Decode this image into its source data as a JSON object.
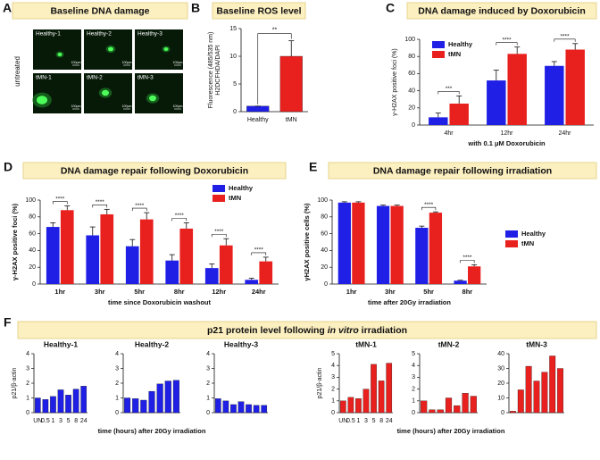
{
  "panel_a": {
    "letter": "A",
    "title": "Baseline DNA damage",
    "row_label": "untreated",
    "images": [
      "Healthy-1",
      "Healthy-2",
      "Healthy-3",
      "tMN-1",
      "tMN-2",
      "tMN-3"
    ],
    "scale_label": "100µm"
  },
  "panel_f": {
    "letter": "F",
    "title_parts": [
      "p21 protein level following ",
      "in vitro",
      " irradiation"
    ]
  },
  "chart_data": [
    {
      "type": "bar",
      "panel": "B",
      "title": "Baseline ROS level",
      "ylabel": [
        "Fluorescence (485/535 nm)",
        "H2DCFHDA/DAPI"
      ],
      "categories": [
        "Healthy",
        "tMN"
      ],
      "values": [
        1,
        10
      ],
      "errors": [
        0,
        2.8
      ],
      "colors": [
        "#1f1fe6",
        "#e8201e"
      ],
      "ylim": [
        0,
        15
      ],
      "yticks": [
        0,
        5,
        10,
        15
      ],
      "comparisons": [
        {
          "from": 0,
          "to": 1,
          "label": "**"
        }
      ]
    },
    {
      "type": "bar",
      "panel": "C",
      "title": "DNA damage induced by Doxorubicin",
      "ylabel": "γ-H2AX positive foci (%)",
      "xlabel": "with 0.1 μM Doxorubicin",
      "categories": [
        "4hr",
        "12hr",
        "24hr"
      ],
      "series": [
        {
          "name": "Healthy",
          "color": "#1f1fe6",
          "values": [
            9,
            52,
            69
          ],
          "errors": [
            5,
            12,
            5
          ]
        },
        {
          "name": "tMN",
          "color": "#e8201e",
          "values": [
            25,
            83,
            88
          ],
          "errors": [
            9,
            8,
            7
          ]
        }
      ],
      "ylim": [
        0,
        100
      ],
      "yticks": [
        0,
        20,
        40,
        60,
        80,
        100
      ],
      "significance": [
        {
          "category": 0,
          "label": "***"
        },
        {
          "category": 1,
          "label": "****"
        },
        {
          "category": 2,
          "label": "****"
        }
      ]
    },
    {
      "type": "bar",
      "panel": "D",
      "title": "DNA damage repair following Doxorubicin",
      "ylabel": "γ-H2AX positive foci (%)",
      "xlabel": "time since Doxorubicin washout",
      "categories": [
        "1hr",
        "3hr",
        "5hr",
        "8hr",
        "12hr",
        "24hr"
      ],
      "series": [
        {
          "name": "Healthy",
          "color": "#1f1fe6",
          "values": [
            68,
            58,
            45,
            28,
            19,
            5
          ],
          "errors": [
            5,
            10,
            8,
            7,
            5,
            2
          ]
        },
        {
          "name": "tMN",
          "color": "#e8201e",
          "values": [
            88,
            83,
            77,
            66,
            46,
            27
          ],
          "errors": [
            5,
            6,
            8,
            7,
            8,
            5
          ]
        }
      ],
      "ylim": [
        0,
        100
      ],
      "yticks": [
        0,
        20,
        40,
        60,
        80,
        100
      ],
      "significance": [
        {
          "category": 0,
          "label": "****"
        },
        {
          "category": 1,
          "label": "****"
        },
        {
          "category": 2,
          "label": "****"
        },
        {
          "category": 3,
          "label": "****"
        },
        {
          "category": 4,
          "label": "****"
        },
        {
          "category": 5,
          "label": "****"
        }
      ]
    },
    {
      "type": "bar",
      "panel": "E",
      "title": "DNA damage repair following irradiation",
      "ylabel": "γH2AX positive cells (%)",
      "xlabel": "time after 20Gy irradiation",
      "categories": [
        "1hr",
        "3hr",
        "5hr",
        "8hr"
      ],
      "series": [
        {
          "name": "Healthy",
          "color": "#1f1fe6",
          "values": [
            97,
            93,
            67,
            4
          ],
          "errors": [
            1,
            1,
            2,
            0.5
          ]
        },
        {
          "name": "tMN",
          "color": "#e8201e",
          "values": [
            97,
            93,
            85,
            21
          ],
          "errors": [
            1,
            1,
            1,
            2
          ]
        }
      ],
      "ylim": [
        0,
        100
      ],
      "yticks": [
        0,
        20,
        40,
        60,
        80,
        100
      ],
      "significance": [
        {
          "category": 2,
          "label": "****"
        },
        {
          "category": 3,
          "label": "****"
        }
      ]
    },
    {
      "type": "bar",
      "title": "Healthy-1",
      "ylabel": "p21/β-actin",
      "xlabel": "time (hours) after  20Gy irradiation",
      "categories": [
        "UN",
        "0.5",
        "1",
        "3",
        "5",
        "8",
        "24"
      ],
      "values": [
        1.0,
        0.9,
        1.1,
        1.55,
        1.2,
        1.6,
        1.8
      ],
      "color": "#1f1fe6",
      "ylim": [
        0,
        4
      ],
      "yticks": [
        0,
        1,
        2,
        3,
        4
      ]
    },
    {
      "type": "bar",
      "title": "Healthy-2",
      "categories": [
        null,
        null,
        null,
        null,
        null,
        null,
        null
      ],
      "values": [
        1.0,
        0.95,
        0.85,
        1.45,
        1.95,
        2.15,
        2.2
      ],
      "color": "#1f1fe6",
      "ylim": [
        0,
        4
      ],
      "yticks": [
        0,
        1,
        2,
        3,
        4
      ]
    },
    {
      "type": "bar",
      "title": "Healthy-3",
      "categories": [
        null,
        null,
        null,
        null,
        null,
        null,
        null
      ],
      "values": [
        0.95,
        0.8,
        0.55,
        0.75,
        0.55,
        0.5,
        0.5
      ],
      "color": "#1f1fe6",
      "ylim": [
        0,
        4
      ],
      "yticks": [
        0,
        1,
        2,
        3,
        4
      ]
    },
    {
      "type": "bar",
      "title": "tMN-1",
      "ylabel": "p21/β-actin",
      "xlabel": "time (hours) after  20Gy irradiation",
      "categories": [
        "UN",
        "0.5",
        "1",
        "3",
        "5",
        "8",
        "24"
      ],
      "values": [
        1.0,
        1.3,
        1.2,
        2.0,
        4.1,
        2.7,
        4.2
      ],
      "color": "#e8201e",
      "ylim": [
        0,
        5
      ],
      "yticks": [
        0,
        1,
        2,
        3,
        4,
        5
      ]
    },
    {
      "type": "bar",
      "title": "tMN-2",
      "categories": [
        null,
        null,
        null,
        null,
        null,
        null,
        null
      ],
      "values": [
        1.0,
        0.25,
        0.25,
        1.25,
        0.6,
        1.65,
        1.4
      ],
      "color": "#e8201e",
      "ylim": [
        0,
        5
      ],
      "yticks": [
        0,
        1,
        2,
        3,
        4,
        5
      ]
    },
    {
      "type": "bar",
      "title": "tMN-3",
      "categories": [
        null,
        null,
        null,
        null,
        null,
        null,
        null
      ],
      "values": [
        1,
        15.5,
        31.5,
        21.5,
        27.5,
        38.5,
        30
      ],
      "color": "#e8201e",
      "ylim": [
        0,
        40
      ],
      "yticks": [
        0,
        10,
        20,
        30,
        40
      ]
    }
  ]
}
